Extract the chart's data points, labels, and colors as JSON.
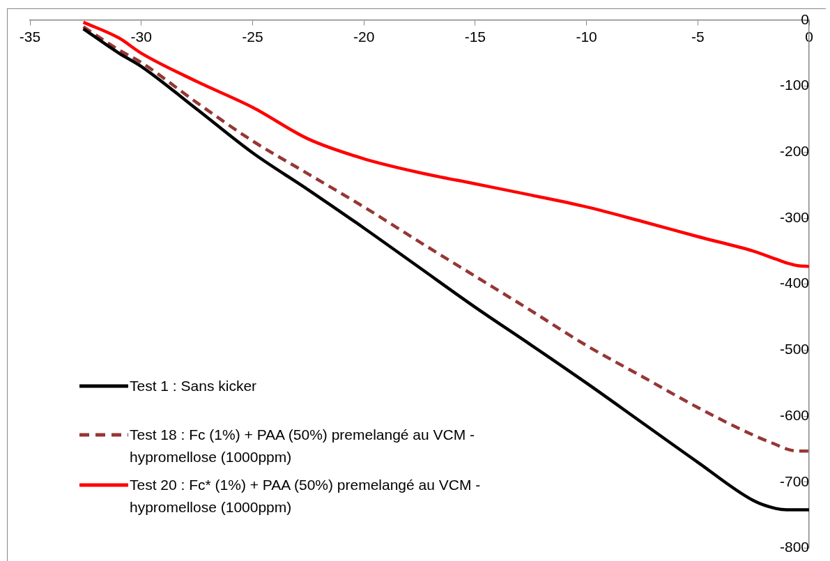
{
  "chart_data": {
    "type": "line",
    "x": [
      -32.6,
      -31,
      -30,
      -27.5,
      -25,
      -22.5,
      -20,
      -17.5,
      -15,
      -12.5,
      -10,
      -7.5,
      -5,
      -2.5,
      -1.5,
      -1,
      -0.5,
      0
    ],
    "series": [
      {
        "name": "Test 1 : Sans kicker",
        "color": "#000000",
        "values": [
          -13,
          -50,
          -70,
          -135,
          -201,
          -257,
          -315,
          -375,
          -435,
          -492,
          -550,
          -610,
          -670,
          -728,
          -740,
          -742,
          -742,
          -742
        ]
      },
      {
        "name": "Test 18 : Fc (1%) + PAA (50%) premelangé au VCM - hypromellose (1000ppm)",
        "color": "#953735",
        "line_style": "dashed",
        "values": [
          -10,
          -45,
          -64,
          -125,
          -183,
          -233,
          -283,
          -336,
          -388,
          -440,
          -493,
          -540,
          -587,
          -629,
          -643,
          -650,
          -653,
          -653
        ]
      },
      {
        "name": "Test 20 : Fc* (1%) + PAA (50%) premelangé au VCM - hypromellose (1000ppm)",
        "color": "#ff0000",
        "values": [
          -3,
          -27,
          -50,
          -93,
          -132,
          -180,
          -210,
          -231,
          -248,
          -265,
          -283,
          -305,
          -328,
          -350,
          -362,
          -368,
          -372,
          -373
        ]
      }
    ],
    "xlim": [
      -35,
      0
    ],
    "xticks": [
      -35,
      -30,
      -25,
      -20,
      -15,
      -10,
      -5,
      0
    ],
    "ylim": [
      -800,
      0
    ],
    "yticks": [
      -800,
      -700,
      -600,
      -500,
      -400,
      -300,
      -200,
      -100,
      0
    ],
    "marker": "none",
    "legend": "bottom left"
  }
}
